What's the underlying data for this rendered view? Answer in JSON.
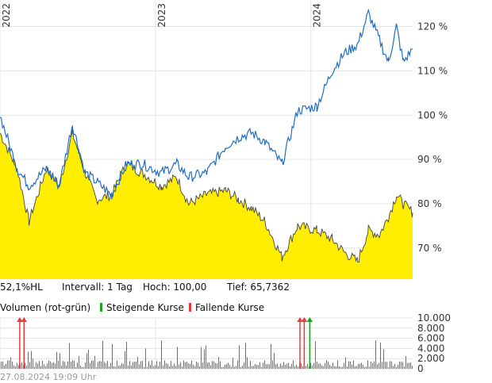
{
  "chart_data": [
    {
      "type": "line",
      "title": "",
      "x_axis": {
        "type": "date",
        "tick_labels": [
          "2022",
          "2023",
          "2024"
        ],
        "range": [
          "2022-01-01",
          "2024-08-27"
        ]
      },
      "y_axis": {
        "position": "right",
        "tick_labels": [
          "120 %",
          "110 %",
          "100 %",
          "90 %",
          "80 %",
          "70 %"
        ],
        "range": [
          63,
          126
        ]
      },
      "grid": true,
      "series": [
        {
          "color": "#1f6fc5",
          "style": "line",
          "x": [
            "2022-01-01",
            "2022-02-10",
            "2022-03-10",
            "2022-04-20",
            "2022-05-20",
            "2022-06-20",
            "2022-07-20",
            "2022-08-15",
            "2022-09-20",
            "2022-10-25",
            "2022-12-01",
            "2023-01-15",
            "2023-02-20",
            "2023-03-20",
            "2023-05-01",
            "2023-06-15",
            "2023-07-15",
            "2023-08-15",
            "2023-09-15",
            "2023-10-25",
            "2023-12-01",
            "2024-01-15",
            "2024-02-20",
            "2024-03-20",
            "2024-04-20",
            "2024-05-15",
            "2024-06-10",
            "2024-07-01",
            "2024-07-20",
            "2024-08-05",
            "2024-08-27"
          ],
          "y": [
            100,
            88,
            84,
            88,
            84,
            98,
            87,
            85,
            82,
            89,
            89,
            87,
            89,
            86,
            87,
            93,
            95,
            96,
            94,
            89,
            101,
            102,
            110,
            114,
            116,
            123,
            117,
            112,
            120,
            112,
            115
          ]
        },
        {
          "color": "#ffee00",
          "style": "area",
          "x": [
            "2022-01-01",
            "2022-02-10",
            "2022-03-10",
            "2022-04-20",
            "2022-05-20",
            "2022-06-20",
            "2022-07-20",
            "2022-08-15",
            "2022-09-20",
            "2022-10-25",
            "2022-12-01",
            "2023-01-15",
            "2023-02-20",
            "2023-03-20",
            "2023-05-01",
            "2023-06-15",
            "2023-07-15",
            "2023-08-15",
            "2023-09-15",
            "2023-10-25",
            "2023-12-01",
            "2024-01-15",
            "2024-02-20",
            "2024-03-20",
            "2024-04-20",
            "2024-05-15",
            "2024-06-10",
            "2024-07-01",
            "2024-07-20",
            "2024-08-05",
            "2024-08-27"
          ],
          "y": [
            96,
            88,
            76,
            88,
            84,
            96,
            87,
            81,
            82,
            89,
            87,
            84,
            86,
            80,
            82,
            83,
            81,
            79,
            76,
            68,
            75,
            74,
            72,
            69,
            67,
            74,
            73,
            77,
            82,
            80,
            78
          ]
        }
      ]
    },
    {
      "type": "bar",
      "title": "",
      "y_axis": {
        "position": "right",
        "tick_labels": [
          "10.000",
          "8.000",
          "6.000",
          "4.000",
          "2.000",
          "0"
        ],
        "range": [
          0,
          10000
        ]
      },
      "series": [
        {
          "name": "Steigende Kurse",
          "color": "#1fa21f"
        },
        {
          "name": "Fallende Kurse",
          "color": "#e83c3c"
        }
      ],
      "spikes": [
        {
          "date": "2022-02-15",
          "value": 9500,
          "direction": "fallend"
        },
        {
          "date": "2022-02-25",
          "value": 9500,
          "direction": "fallend"
        },
        {
          "date": "2023-12-05",
          "value": 9500,
          "direction": "fallend"
        },
        {
          "date": "2023-12-15",
          "value": 9500,
          "direction": "fallend"
        },
        {
          "date": "2023-12-28",
          "value": 9500,
          "direction": "steigend"
        }
      ]
    }
  ],
  "info": {
    "hl": "52,1%HL",
    "interval": "Intervall: 1 Tag",
    "high": "Hoch:  100,00",
    "low": "Tief: 65,7362"
  },
  "volume_legend": {
    "title": "Volumen (rot-grün)",
    "rising": "Steigende Kurse",
    "falling": "Fallende Kurse"
  },
  "timestamp": "27.08.2024 19:09 Uhr"
}
